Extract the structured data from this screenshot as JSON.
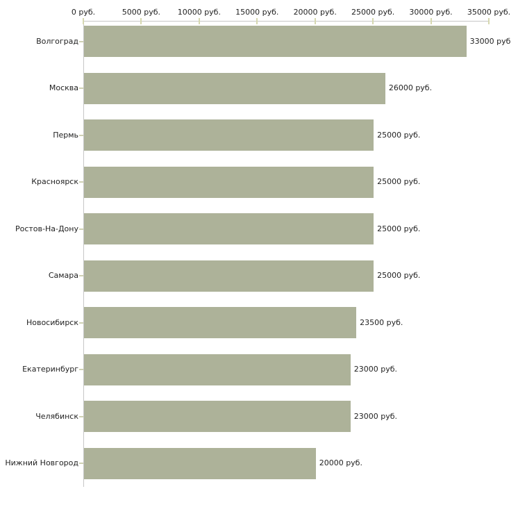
{
  "chart_data": {
    "type": "bar",
    "orientation": "horizontal",
    "title": "",
    "xlabel": "",
    "ylabel": "",
    "grid": false,
    "legend": "none",
    "xlim": [
      0,
      35000
    ],
    "x_ticks": [
      {
        "value": 0,
        "label": "0 руб."
      },
      {
        "value": 5000,
        "label": "5000 руб."
      },
      {
        "value": 10000,
        "label": "10000 руб."
      },
      {
        "value": 15000,
        "label": "15000 руб."
      },
      {
        "value": 20000,
        "label": "20000 руб."
      },
      {
        "value": 25000,
        "label": "25000 руб."
      },
      {
        "value": 30000,
        "label": "30000 руб."
      },
      {
        "value": 35000,
        "label": "35000 руб."
      }
    ],
    "categories": [
      "Волгоград",
      "Москва",
      "Пермь",
      "Красноярск",
      "Ростов-На-Дону",
      "Самара",
      "Новосибирск",
      "Екатеринбург",
      "Челябинск",
      "Нижний Новгород"
    ],
    "values": [
      33000,
      26000,
      25000,
      25000,
      25000,
      25000,
      23500,
      23000,
      23000,
      20000
    ],
    "value_labels": [
      "33000 руб",
      "26000 руб.",
      "25000 руб.",
      "25000 руб.",
      "25000 руб.",
      "25000 руб.",
      "23500 руб.",
      "23000 руб.",
      "23000 руб.",
      "20000 руб."
    ],
    "colors": {
      "bar": "#adb299",
      "axis": "#c6c6c6",
      "tick": "#d6d8b0",
      "text": "#222222",
      "background": "#ffffff"
    }
  }
}
